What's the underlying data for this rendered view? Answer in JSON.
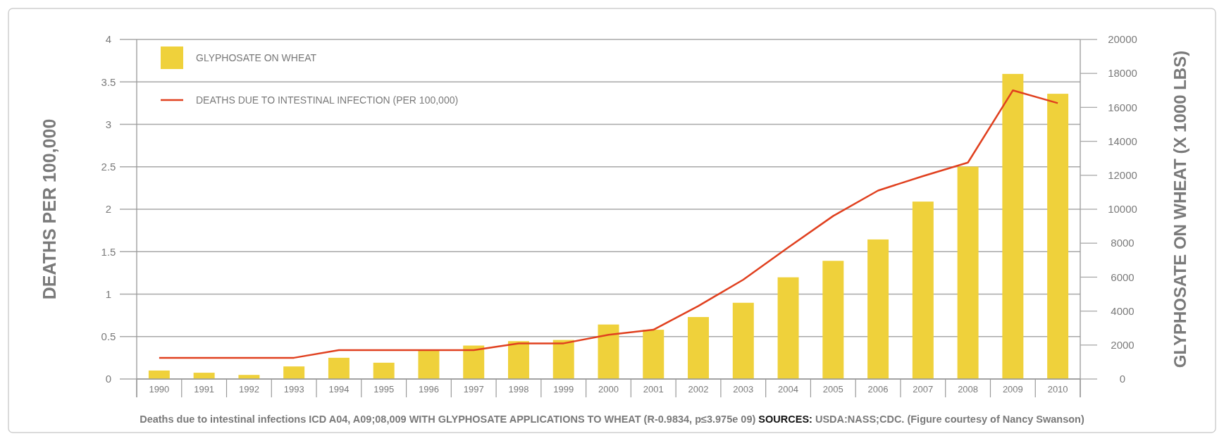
{
  "chart_data": {
    "type": "bar",
    "categories": [
      "1990",
      "1991",
      "1992",
      "1993",
      "1994",
      "1995",
      "1996",
      "1997",
      "1998",
      "1999",
      "2000",
      "2001",
      "2002",
      "2003",
      "2004",
      "2005",
      "2006",
      "2007",
      "2008",
      "2009",
      "2010"
    ],
    "series": [
      {
        "name": "GLYPHOSATE ON WHEAT",
        "axis": "y2",
        "color": "#efd13b",
        "values": [
          500,
          370,
          240,
          740,
          1250,
          960,
          1700,
          1970,
          2230,
          2300,
          3210,
          2900,
          3650,
          4490,
          5990,
          6960,
          8220,
          10450,
          12510,
          17970,
          16800
        ]
      },
      {
        "name": "DEATHS DUE TO INTESTINAL INFECTION (PER 100,000)",
        "type": "line",
        "color": "#e0401f",
        "values": [
          0.25,
          0.25,
          0.25,
          0.25,
          0.34,
          0.34,
          0.34,
          0.34,
          0.42,
          0.42,
          0.52,
          0.58,
          0.86,
          1.17,
          1.55,
          1.92,
          2.22,
          2.39,
          2.55,
          3.4,
          3.25
        ]
      }
    ],
    "ylabel": "DEATHS PER 100,000",
    "y2label": "GLYPHOSATE ON WHEAT (X 1000 LBS)",
    "ylim": [
      0,
      4
    ],
    "yticks": [
      0,
      0.5,
      1,
      1.5,
      2,
      2.5,
      3,
      3.5,
      4
    ],
    "y2lim": [
      0,
      20000
    ],
    "y2ticks": [
      0,
      2000,
      4000,
      6000,
      8000,
      10000,
      12000,
      14000,
      16000,
      18000,
      20000
    ],
    "grid": "y",
    "legend": "top left",
    "line_style": "solid",
    "marker": "none",
    "annotations": [
      "Deaths due to intestinal infections ICD A04, A09;08,009 WITH GLYPHOSATE APPLICATIONS TO WHEAT (R-0.9834, p≤3.975e 09)",
      "SOURCES: USDA:NASS;CDC. (Figure courtesy of Nancy Swanson)"
    ]
  }
}
